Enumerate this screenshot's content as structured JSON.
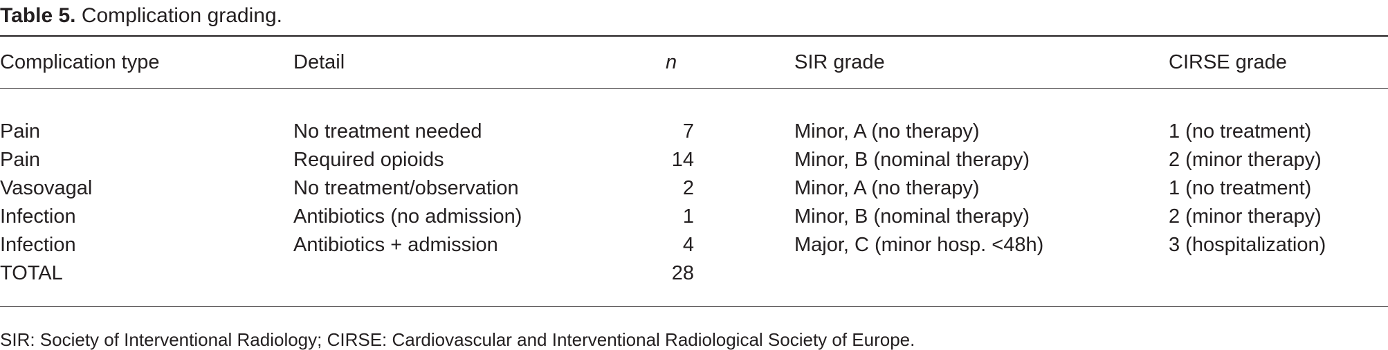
{
  "caption": {
    "label": "Table 5.",
    "text": "Complication grading."
  },
  "table": {
    "headers": [
      "Complication type",
      "Detail",
      "n",
      "SIR grade",
      "CIRSE grade"
    ],
    "rows": [
      [
        "Pain",
        "No treatment needed",
        "7",
        "Minor, A (no therapy)",
        "1 (no treatment)"
      ],
      [
        "Pain",
        "Required opioids",
        "14",
        "Minor, B (nominal therapy)",
        "2 (minor therapy)"
      ],
      [
        "Vasovagal",
        "No treatment/observation",
        "2",
        "Minor, A (no therapy)",
        "1 (no treatment)"
      ],
      [
        "Infection",
        "Antibiotics (no admission)",
        "1",
        "Minor, B (nominal therapy)",
        "2 (minor therapy)"
      ],
      [
        "Infection",
        "Antibiotics + admission",
        "4",
        "Major, C (minor hosp. <48h)",
        "3 (hospitalization)"
      ],
      [
        "TOTAL",
        "",
        "28",
        "",
        ""
      ]
    ]
  },
  "footnote": "SIR: Society of Interventional Radiology; CIRSE: Cardiovascular and Interventional Radiological Society of Europe."
}
